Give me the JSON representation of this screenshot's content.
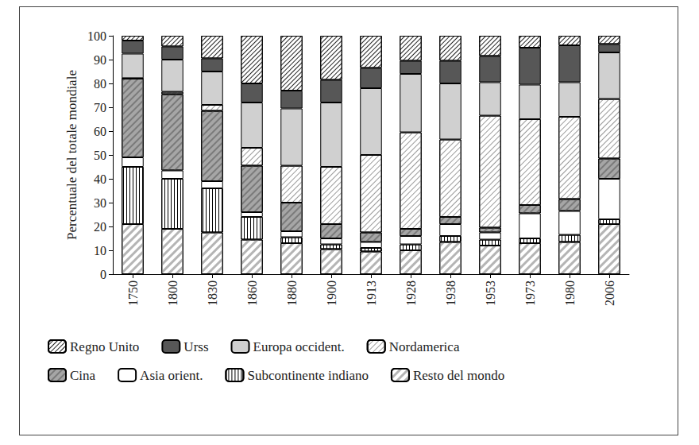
{
  "chart_data": {
    "type": "bar",
    "stacked": true,
    "y_label": "Percentuale del totale mondiale",
    "categories": [
      "1750",
      "1800",
      "1830",
      "1860",
      "1880",
      "1900",
      "1913",
      "1928",
      "1938",
      "1953",
      "1973",
      "1980",
      "2006"
    ],
    "ylim": [
      0,
      100
    ],
    "yticks": [
      0,
      10,
      20,
      30,
      40,
      50,
      60,
      70,
      80,
      90,
      100
    ],
    "grid": false,
    "legend": "bottom",
    "series": [
      {
        "name": "Resto del mondo",
        "color": "#ffffff",
        "values": [
          21,
          19,
          17.5,
          14.5,
          13,
          10.5,
          9.5,
          10,
          13.5,
          12,
          13,
          13.5,
          21
        ]
      },
      {
        "name": "Subcontinente indiano",
        "color": "#ffffff",
        "values": [
          24,
          21,
          18.5,
          9.5,
          2.5,
          2,
          1.5,
          2.5,
          2.5,
          2.5,
          2,
          3,
          2
        ]
      },
      {
        "name": "Asia orient.",
        "color": "#ffffff",
        "values": [
          4,
          3.5,
          3,
          2,
          2.5,
          2.5,
          2.5,
          3.5,
          5,
          3,
          10.5,
          10,
          17
        ]
      },
      {
        "name": "Cina",
        "color": "#a6a6a6",
        "values": [
          33,
          32,
          29.5,
          19.5,
          12,
          6,
          4,
          3,
          3,
          2,
          3.5,
          5,
          8.5
        ]
      },
      {
        "name": "Nordamerica",
        "color": "#ffffff",
        "values": [
          0.2,
          1,
          2.5,
          7.5,
          15.5,
          24,
          32.5,
          40.5,
          32.5,
          47,
          36,
          34.5,
          25
        ]
      },
      {
        "name": "Europa occident.",
        "color": "#d0d0d0",
        "values": [
          10.3,
          13.5,
          14,
          19,
          24,
          27,
          28,
          24.5,
          23.5,
          14,
          14.5,
          14.5,
          19.5
        ]
      },
      {
        "name": "Urss",
        "color": "#575757",
        "values": [
          5.5,
          5.5,
          5.5,
          8,
          7.5,
          9.5,
          8.5,
          5.5,
          9.5,
          11,
          15.5,
          15.5,
          3.5
        ]
      },
      {
        "name": "Regno Unito",
        "color": "#ffffff",
        "values": [
          2,
          4.5,
          9.5,
          20,
          23,
          18.5,
          13.5,
          10.5,
          10.5,
          8.5,
          5,
          4,
          3.5
        ]
      }
    ]
  }
}
